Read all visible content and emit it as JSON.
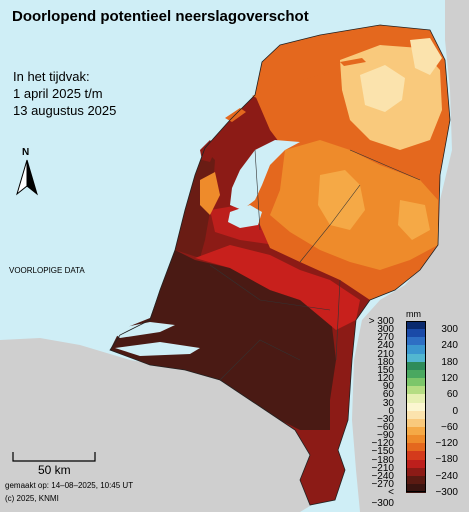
{
  "title": "Doorlopend potentieel neerslagoverschot",
  "period": {
    "line1": "In het tijdvak:",
    "line2": "1 april 2025 t/m",
    "line3": "13 augustus 2025"
  },
  "north_label": "N",
  "preliminary": "VOORLOPIGE DATA",
  "scale": {
    "label": "50 km"
  },
  "made": "gemaakt op: 14–08–2025, 10:45 UT",
  "copyright": "(c) 2025, KNMI",
  "legend": {
    "unit": "mm",
    "left_labels": [
      "> 300",
      "300",
      "270",
      "240",
      "210",
      "180",
      "150",
      "120",
      "90",
      "60",
      "30",
      "0",
      "−30",
      "−60",
      "−90",
      "−120",
      "−150",
      "−180",
      "−210",
      "−240",
      "−270",
      "< −300"
    ],
    "right_labels": [
      "300",
      "240",
      "180",
      "120",
      "60",
      "0",
      "−60",
      "−120",
      "−180",
      "−240",
      "−300"
    ],
    "colors": [
      "#0a2a6e",
      "#1a4aa8",
      "#2e6fc4",
      "#3b97cf",
      "#52b7d0",
      "#2f8c5a",
      "#4aa860",
      "#7cc66a",
      "#b5dd83",
      "#e6f0b2",
      "#fbf6d0",
      "#fbe3ad",
      "#f9c97c",
      "#f5a946",
      "#ee8b2b",
      "#e4681e",
      "#d43b1c",
      "#bd1f1c",
      "#8c1b16",
      "#5a1a12",
      "#3a1410"
    ]
  },
  "colors": {
    "sea": "#cfeef6",
    "land_foreign": "#cfcfcf",
    "very_dry": "#4a1a14",
    "dry": "#8c1b16",
    "red": "#c8201c",
    "orange_dark": "#e4681e",
    "orange": "#ee8b2b",
    "orange_light": "#f5a946",
    "yellow": "#f9c97c",
    "pale": "#fbe3ad"
  }
}
